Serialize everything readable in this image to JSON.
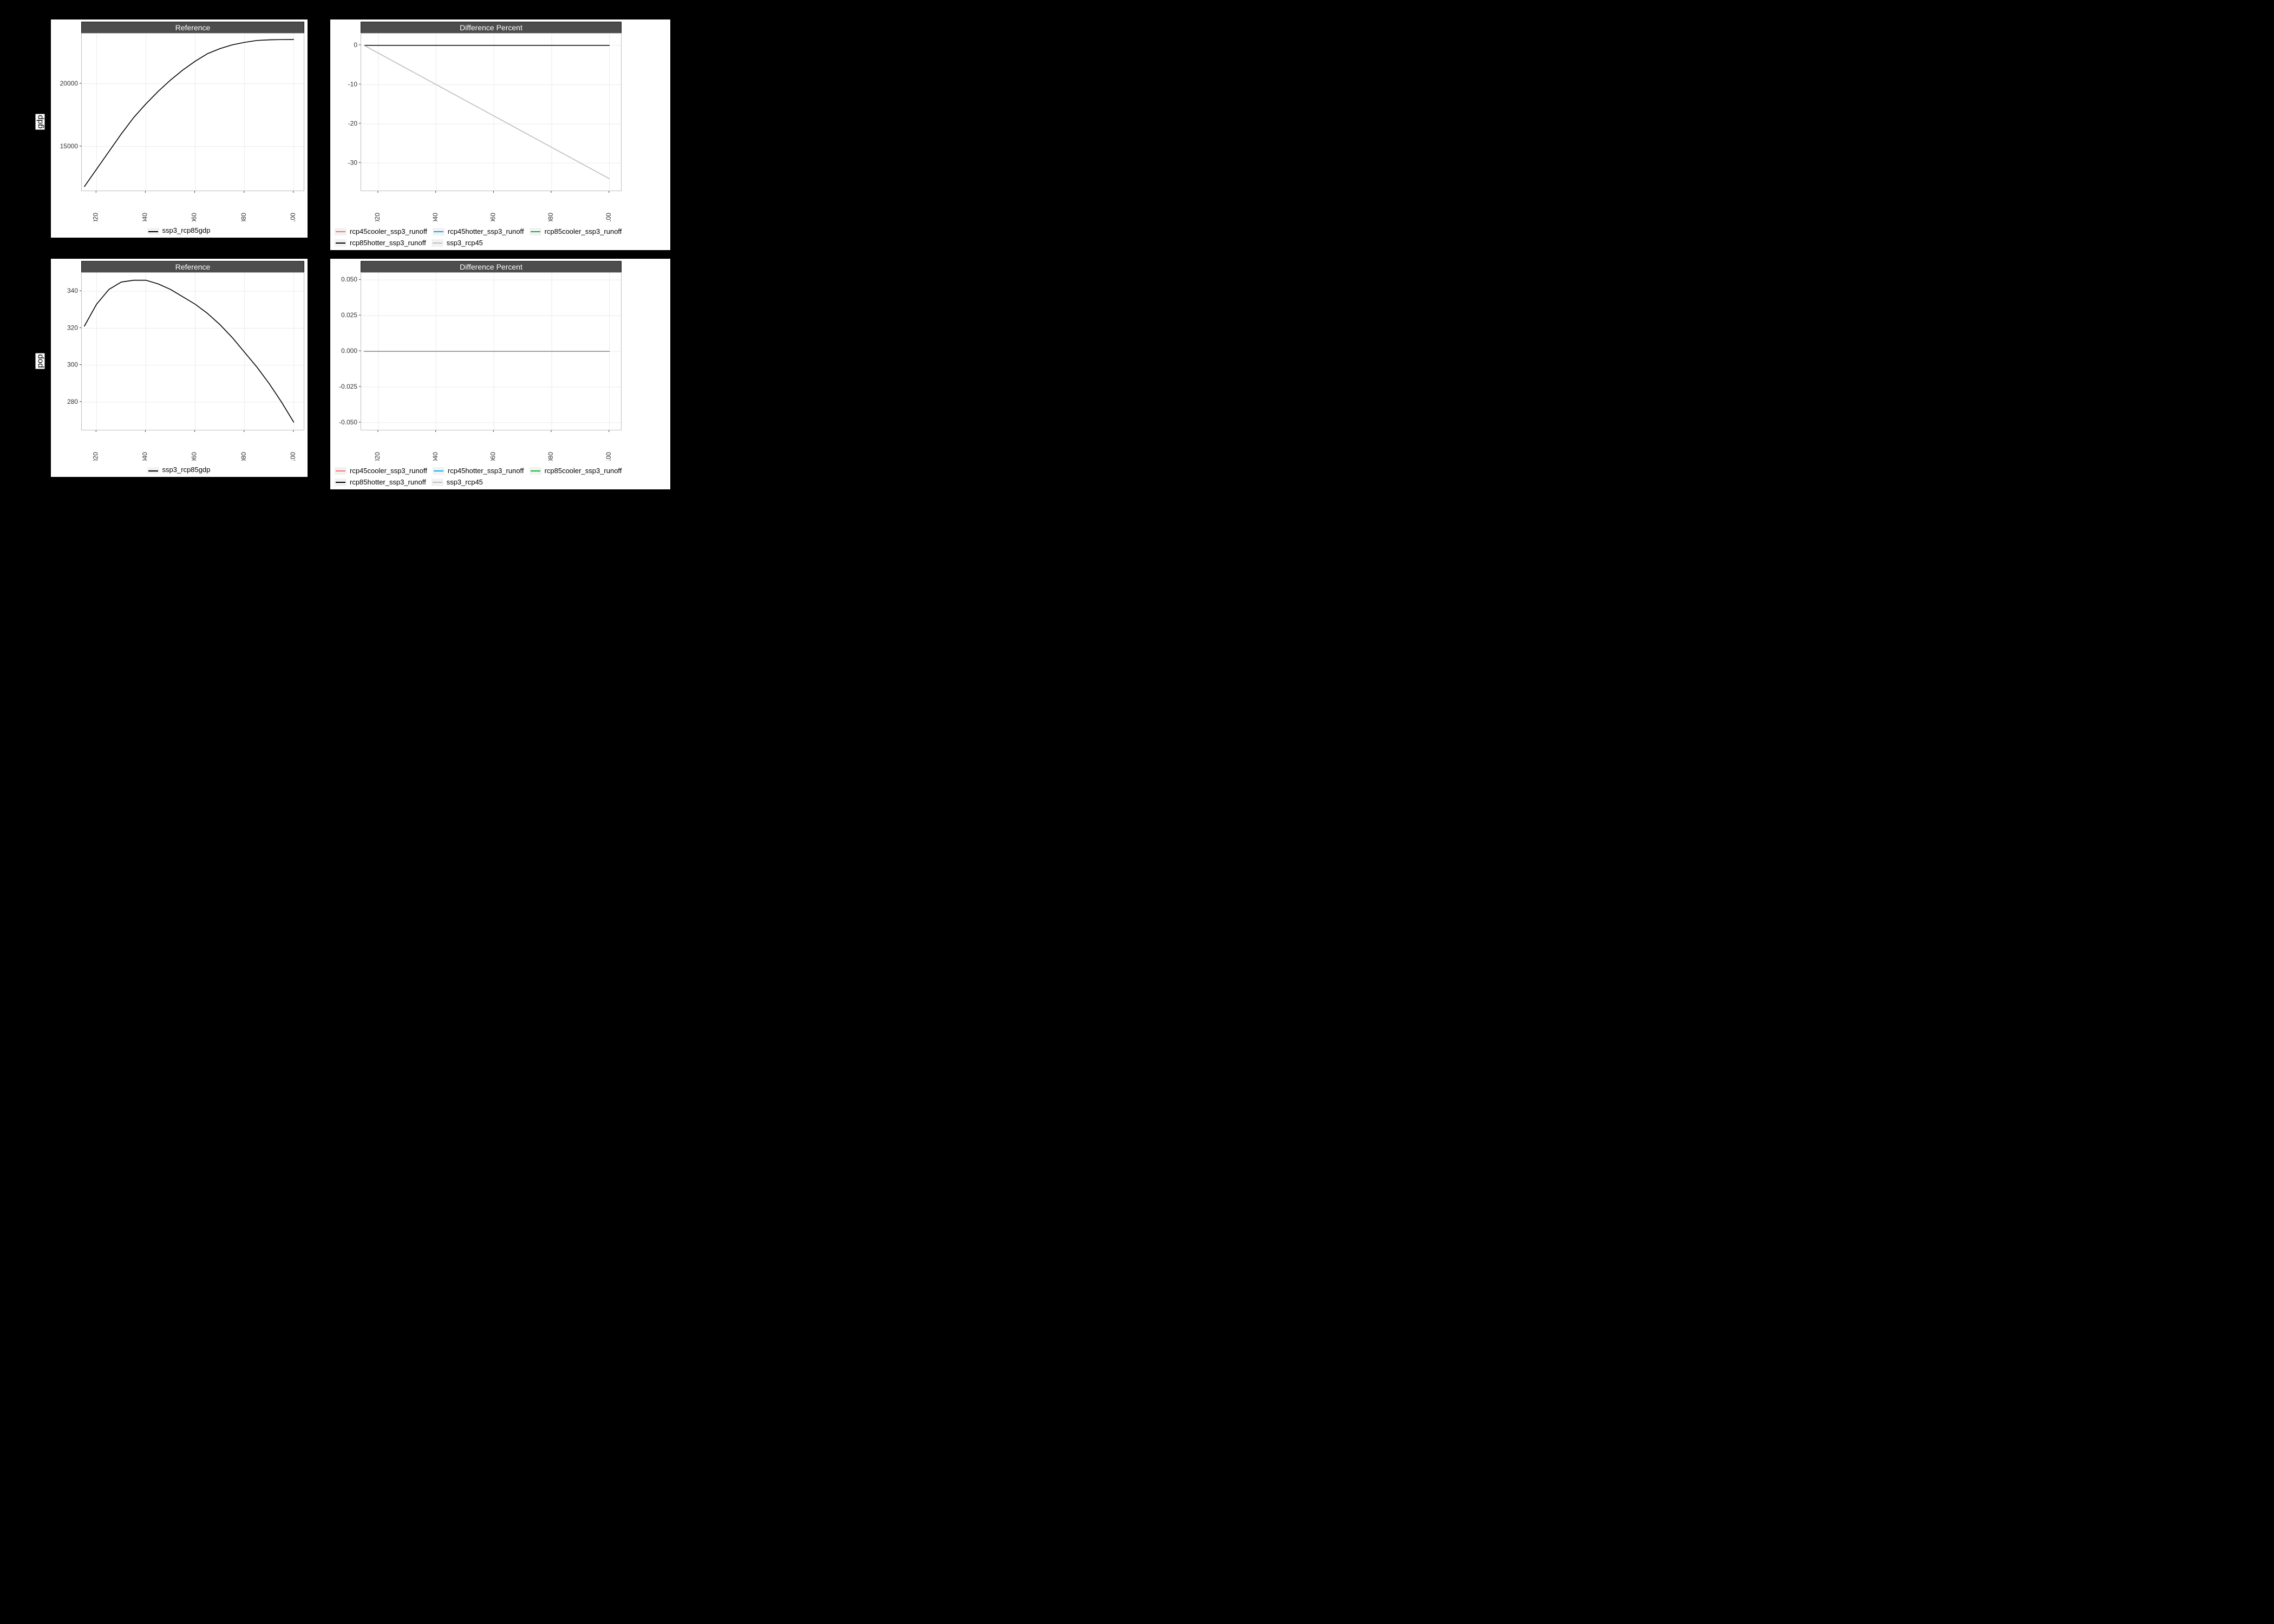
{
  "background_color": "#000000",
  "panel": {
    "strip_bg": "#4d4d4d",
    "strip_text_color": "#ffffff",
    "plot_bg": "#ffffff",
    "border_color": "#bdbdbd",
    "grid_color": "#ebebeb"
  },
  "x_axis": {
    "ticks": [
      2020,
      2040,
      2060,
      2080,
      2100
    ],
    "min": 2014,
    "max": 2104
  },
  "legends": {
    "reference": {
      "label": "ssp3_rcp85gdp",
      "color": "#000000"
    },
    "diff": [
      {
        "label": "rcp45cooler_ssp3_runoff",
        "color": "#f8766d"
      },
      {
        "label": "rcp45hotter_ssp3_runoff",
        "color": "#00b0f6"
      },
      {
        "label": "rcp85cooler_ssp3_runoff",
        "color": "#00bf32"
      },
      {
        "label": "rcp85hotter_ssp3_runoff",
        "color": "#000000"
      },
      {
        "label": "ssp3_rcp45",
        "color": "#bfbfbf"
      }
    ]
  },
  "charts": {
    "gdp_ref": {
      "title": "Reference",
      "type": "line",
      "ylabel": "gdp",
      "ylim": [
        11500,
        24000
      ],
      "yticks": [
        15000,
        20000
      ],
      "series": [
        {
          "color": "#000000",
          "width": 1.6,
          "x": [
            2015,
            2020,
            2025,
            2030,
            2035,
            2040,
            2045,
            2050,
            2055,
            2060,
            2065,
            2070,
            2075,
            2080,
            2085,
            2090,
            2095,
            2100
          ],
          "y": [
            11800,
            13200,
            14600,
            16000,
            17300,
            18400,
            19400,
            20300,
            21100,
            21800,
            22400,
            22800,
            23100,
            23300,
            23450,
            23500,
            23520,
            23530
          ]
        }
      ]
    },
    "gdp_diff": {
      "title": "Difference Percent",
      "type": "line",
      "ylim": [
        -37,
        3
      ],
      "yticks": [
        -30,
        -20,
        -10,
        0
      ],
      "series": [
        {
          "color": "#f8766d",
          "width": 1.4,
          "x": [
            2015,
            2100
          ],
          "y": [
            0,
            0
          ]
        },
        {
          "color": "#00b0f6",
          "width": 1.4,
          "x": [
            2015,
            2100
          ],
          "y": [
            0,
            0
          ]
        },
        {
          "color": "#00bf32",
          "width": 1.4,
          "x": [
            2015,
            2100
          ],
          "y": [
            0,
            0
          ]
        },
        {
          "color": "#000000",
          "width": 1.6,
          "x": [
            2015,
            2100
          ],
          "y": [
            0,
            0
          ]
        },
        {
          "color": "#bfbfbf",
          "width": 1.6,
          "x": [
            2015,
            2020,
            2025,
            2030,
            2035,
            2040,
            2045,
            2050,
            2055,
            2060,
            2065,
            2070,
            2075,
            2080,
            2085,
            2090,
            2095,
            2100
          ],
          "y": [
            0,
            -2,
            -4,
            -6,
            -8,
            -10,
            -12,
            -14,
            -16,
            -18,
            -20,
            -22,
            -24,
            -26,
            -28,
            -30,
            -32,
            -34
          ]
        }
      ]
    },
    "pop_ref": {
      "title": "Reference",
      "type": "line",
      "ylabel": "pop",
      "ylim": [
        265,
        350
      ],
      "yticks": [
        280,
        300,
        320,
        340
      ],
      "series": [
        {
          "color": "#000000",
          "width": 1.6,
          "x": [
            2015,
            2020,
            2025,
            2030,
            2035,
            2040,
            2045,
            2050,
            2055,
            2060,
            2065,
            2070,
            2075,
            2080,
            2085,
            2090,
            2095,
            2100
          ],
          "y": [
            321,
            333,
            341,
            345,
            346,
            346,
            344,
            341,
            337,
            333,
            328,
            322,
            315,
            307,
            299,
            290,
            280,
            269
          ]
        }
      ]
    },
    "pop_diff": {
      "title": "Difference Percent",
      "type": "line",
      "ylim": [
        -0.055,
        0.055
      ],
      "yticks": [
        -0.05,
        -0.025,
        0.0,
        0.025,
        0.05
      ],
      "ytick_format": "fixed3",
      "series": [
        {
          "color": "#f8766d",
          "width": 1.4,
          "x": [
            2015,
            2100
          ],
          "y": [
            0,
            0
          ]
        },
        {
          "color": "#00b0f6",
          "width": 1.4,
          "x": [
            2015,
            2100
          ],
          "y": [
            0,
            0
          ]
        },
        {
          "color": "#00bf32",
          "width": 1.4,
          "x": [
            2015,
            2100
          ],
          "y": [
            0,
            0
          ]
        },
        {
          "color": "#000000",
          "width": 1.6,
          "x": [
            2015,
            2100
          ],
          "y": [
            0,
            0
          ]
        },
        {
          "color": "#bfbfbf",
          "width": 1.6,
          "x": [
            2015,
            2100
          ],
          "y": [
            0,
            0
          ]
        }
      ]
    }
  },
  "layout": {
    "ref_plot_width": 410,
    "ref_plot_height": 290,
    "diff_plot_width": 480,
    "diff_plot_height": 290,
    "yaxis_gutter": 52,
    "xaxis_gutter": 56,
    "row_gap": 8
  }
}
